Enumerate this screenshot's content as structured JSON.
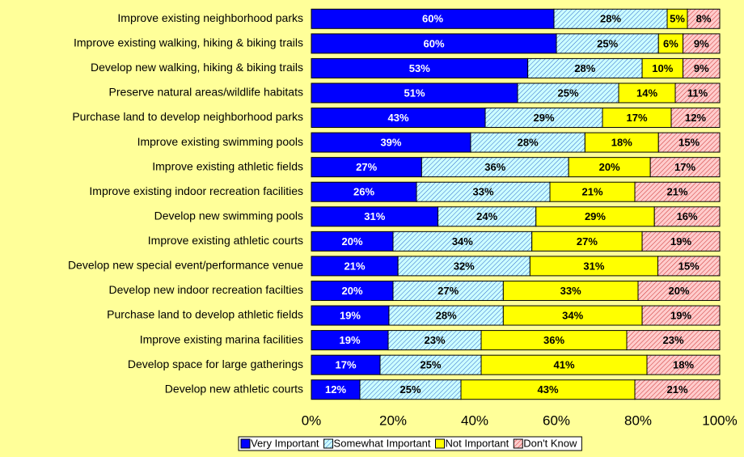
{
  "chart_data": {
    "type": "bar",
    "orientation": "horizontal",
    "stacked": true,
    "percent": true,
    "categories": [
      "Improve existing neighborhood parks",
      "Improve existing walking, hiking & biking trails",
      "Develop new walking, hiking & biking trails",
      "Preserve natural areas/wildlife habitats",
      "Purchase land to develop neighborhood parks",
      "Improve existing swimming pools",
      "Improve existing athletic fields",
      "Improve existing indoor recreation facilities",
      "Develop new swimming pools",
      "Improve existing athletic courts",
      "Develop new special event/performance venue",
      "Develop new indoor recreation facilties",
      "Purchase land to develop athletic fields",
      "Improve existing marina facilities",
      "Develop space for large gatherings",
      "Develop new athletic courts"
    ],
    "series": [
      {
        "name": "Very Important",
        "color": "#0000ff",
        "label_color": "#ffffff",
        "values": [
          60,
          60,
          53,
          51,
          43,
          39,
          27,
          26,
          31,
          20,
          21,
          20,
          19,
          19,
          17,
          12
        ],
        "value_labels": [
          "60%",
          "60%",
          "53%",
          "51%",
          "43%",
          "39%",
          "27%",
          "26%",
          "31%",
          "20%",
          "21%",
          "20%",
          "19%",
          "19%",
          "17%",
          "12%"
        ]
      },
      {
        "name": "Somewhat Important",
        "color": "#ccffff",
        "pattern": "#3366cc",
        "label_color": "#000000",
        "values": [
          28,
          25,
          28,
          25,
          29,
          28,
          36,
          33,
          24,
          34,
          32,
          27,
          28,
          23,
          25,
          25
        ],
        "value_labels": [
          "28%",
          "25%",
          "28%",
          "25%",
          "29%",
          "28%",
          "36%",
          "33%",
          "24%",
          "34%",
          "32%",
          "27%",
          "28%",
          "23%",
          "25%",
          "25%"
        ]
      },
      {
        "name": "Not Important",
        "color": "#ffff00",
        "label_color": "#000000",
        "values": [
          5,
          6,
          10,
          14,
          17,
          18,
          20,
          21,
          29,
          27,
          31,
          33,
          34,
          36,
          41,
          43
        ],
        "value_labels": [
          "5%",
          "6%",
          "10%",
          "14%",
          "17%",
          "18%",
          "20%",
          "21%",
          "29%",
          "27%",
          "31%",
          "33%",
          "34%",
          "36%",
          "41%",
          "43%"
        ]
      },
      {
        "name": "Don't Know",
        "color": "#ffcccc",
        "pattern": "#cc3333",
        "label_color": "#000000",
        "values": [
          8,
          9,
          9,
          11,
          12,
          15,
          17,
          21,
          16,
          19,
          15,
          20,
          19,
          23,
          18,
          21
        ],
        "value_labels": [
          "8%",
          "9%",
          "9%",
          "11%",
          "12%",
          "15%",
          "17%",
          "21%",
          "16%",
          "19%",
          "15%",
          "20%",
          "19%",
          "23%",
          "18%",
          "21%"
        ]
      }
    ],
    "xlim": [
      0,
      100
    ],
    "xticks": [
      {
        "value": 0,
        "label": "0%"
      },
      {
        "value": 20,
        "label": "20%"
      },
      {
        "value": 40,
        "label": "40%"
      },
      {
        "value": 60,
        "label": "60%"
      },
      {
        "value": 80,
        "label": "80%"
      },
      {
        "value": 100,
        "label": "100%"
      }
    ],
    "legend": "bottom"
  }
}
